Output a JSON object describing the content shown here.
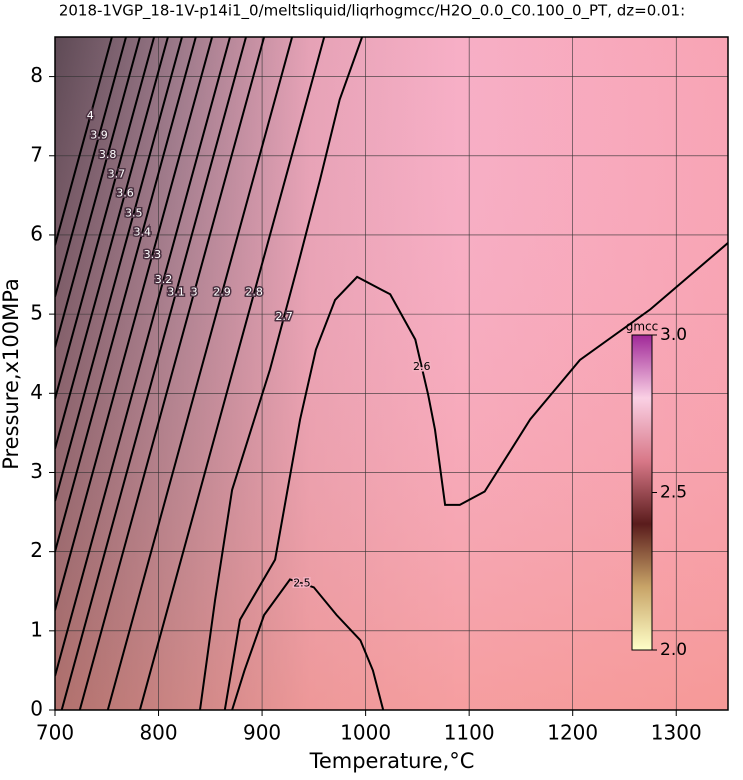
{
  "chart_data": {
    "type": "contour",
    "title": "2018-1VGP_18-1V-p14i1_0/meltsliquid/liqrhogmcc/H2O_0.0_C0.100_0_PT, dz=0.01:",
    "x_label": "Temperature,°C",
    "y_label": "Pressure,x100MPa",
    "xlim": [
      700,
      1350
    ],
    "xticks": [
      700,
      800,
      900,
      1000,
      1100,
      1200,
      1300
    ],
    "ylim": [
      0,
      8.5
    ],
    "yticks": [
      0,
      1,
      2,
      3,
      4,
      5,
      6,
      7,
      8
    ],
    "grid": true,
    "contours": [
      {
        "level": 2.5,
        "x": [
          871,
          883,
          902,
          927,
          950,
          972,
          995,
          1007,
          1017
        ],
        "y": [
          0,
          0.5,
          1.2,
          1.65,
          1.55,
          1.2,
          0.88,
          0.5,
          0
        ]
      },
      {
        "level": 2.6,
        "x": [
          864,
          878.7,
          912.6,
          936.7,
          952,
          970.5,
          991.8,
          1023.7,
          1048,
          1060.4,
          1067,
          1076.8,
          1091,
          1115,
          1159,
          1207,
          1275,
          1350
        ],
        "y": [
          0,
          1.14,
          1.9,
          3.67,
          4.55,
          5.18,
          5.47,
          5.25,
          4.68,
          3.98,
          3.54,
          2.59,
          2.59,
          2.76,
          3.67,
          4.42,
          5.06,
          5.9
        ]
      },
      {
        "level": 2.7,
        "x": [
          840,
          854.6,
          871,
          907.7,
          934.8,
          956,
          975,
          996.6
        ],
        "y": [
          0,
          1.39,
          2.78,
          4.3,
          5.63,
          6.7,
          7.71,
          8.5
        ]
      },
      {
        "level": 2.8,
        "x": [
          782,
          960
        ],
        "y": [
          0,
          8.5
        ]
      },
      {
        "level": 2.9,
        "x": [
          751,
          929
        ],
        "y": [
          0,
          8.5
        ]
      },
      {
        "level": 3.0,
        "x": [
          724,
          902
        ],
        "y": [
          0,
          8.5
        ]
      },
      {
        "level": 3.1,
        "x": [
          706.5,
          884.5
        ],
        "y": [
          0,
          8.5
        ]
      },
      {
        "level": 3.2,
        "x": [
          700,
          869
        ],
        "y": [
          0.43,
          8.5
        ]
      },
      {
        "level": 3.3,
        "x": [
          700,
          851.7
        ],
        "y": [
          1.26,
          8.5
        ]
      },
      {
        "level": 3.4,
        "x": [
          700,
          836
        ],
        "y": [
          2.0,
          8.5
        ]
      },
      {
        "level": 3.5,
        "x": [
          700,
          822.7
        ],
        "y": [
          2.64,
          8.5
        ]
      },
      {
        "level": 3.6,
        "x": [
          700,
          809
        ],
        "y": [
          3.3,
          8.5
        ]
      },
      {
        "level": 3.7,
        "x": [
          700,
          795.7
        ],
        "y": [
          3.93,
          8.5
        ]
      },
      {
        "level": 3.8,
        "x": [
          700,
          782
        ],
        "y": [
          4.58,
          8.5
        ]
      },
      {
        "level": 3.9,
        "x": [
          700,
          768.6
        ],
        "y": [
          5.22,
          8.5
        ]
      },
      {
        "level": 4.0,
        "x": [
          700,
          755
        ],
        "y": [
          5.87,
          8.5
        ]
      }
    ],
    "colorbar": {
      "label": "gmcc",
      "lim": [
        2,
        3
      ],
      "ticks": [
        {
          "value": 2,
          "label": "2.0"
        },
        {
          "value": 2.5,
          "label": "2.5"
        },
        {
          "value": 3,
          "label": "3.0"
        }
      ],
      "colormap": [
        "#ffffc8",
        "#c8a468",
        "#5a1c1c",
        "#d87888",
        "#fad0e4",
        "#a02898"
      ]
    }
  }
}
